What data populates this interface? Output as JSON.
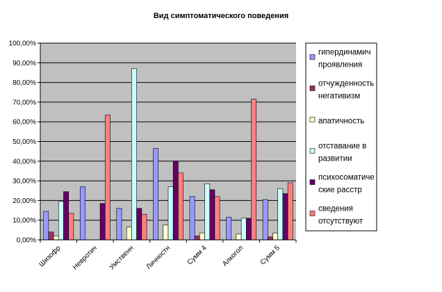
{
  "chart_data": {
    "type": "bar",
    "title": "Вид симптоматического поведения",
    "xlabel": "",
    "ylabel": "",
    "ylim": [
      0,
      100
    ],
    "yticks": [
      "0,00%",
      "10,00%",
      "20,00%",
      "30,00%",
      "40,00%",
      "50,00%",
      "60,00%",
      "70,00%",
      "80,00%",
      "90,00%",
      "100,00%"
    ],
    "categories": [
      "Шизофр",
      "Невротич",
      "Умственн",
      "Личностн",
      "Сумм 4",
      "Алкогол",
      "Сумм 5"
    ],
    "series": [
      {
        "name": "гипердинамич проявления",
        "label_lines": [
          "гипердинамич",
          "проявления"
        ],
        "color": "#9999FF",
        "values": [
          14.5,
          27,
          16,
          46.5,
          22,
          11.5,
          20.5
        ]
      },
      {
        "name": "отчужденность негативизм",
        "label_lines": [
          "отчужденность",
          "негативизм"
        ],
        "color": "#993366",
        "values": [
          4,
          0,
          0,
          0,
          2,
          0,
          1.5
        ]
      },
      {
        "name": "апатичность",
        "label_lines": [
          "апатичность"
        ],
        "color": "#FFFFCC",
        "values": [
          2,
          0,
          6.5,
          7.5,
          3.5,
          3,
          3.5
        ]
      },
      {
        "name": "отставание в развитии",
        "label_lines": [
          "отставание в",
          "развитии"
        ],
        "color": "#CCFFFF",
        "values": [
          19.5,
          0,
          87,
          27,
          28.5,
          11,
          26
        ]
      },
      {
        "name": "психосоматические расстр",
        "label_lines": [
          "психосоматиче",
          "ские расстр"
        ],
        "color": "#660066",
        "values": [
          24.5,
          18.5,
          16,
          40,
          25.5,
          11,
          23.5
        ]
      },
      {
        "name": "сведения отсутствуют",
        "label_lines": [
          "сведения",
          "отсутствуют"
        ],
        "color": "#FF8080",
        "values": [
          13.5,
          63.5,
          13,
          34,
          22,
          71.5,
          29
        ]
      }
    ],
    "grid": true,
    "plot_background": "#C0C0C0",
    "legend": "right"
  }
}
